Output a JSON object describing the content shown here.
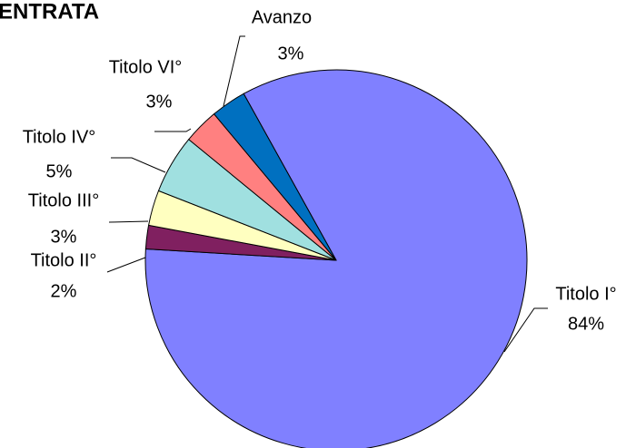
{
  "chart_data": {
    "type": "pie",
    "title": "ENTRATA",
    "categories": [
      "Titolo I°",
      "Titolo II°",
      "Titolo III°",
      "Titolo IV°",
      "Titolo VI°",
      "Avanzo"
    ],
    "values": [
      84,
      2,
      3,
      5,
      3,
      3
    ],
    "value_labels": [
      "84%",
      "2%",
      "3%",
      "5%",
      "3%",
      "3%"
    ],
    "colors": [
      "#8080ff",
      "#802060",
      "#ffffc0",
      "#a0e0e0",
      "#ff8080",
      "#0070c0"
    ]
  }
}
